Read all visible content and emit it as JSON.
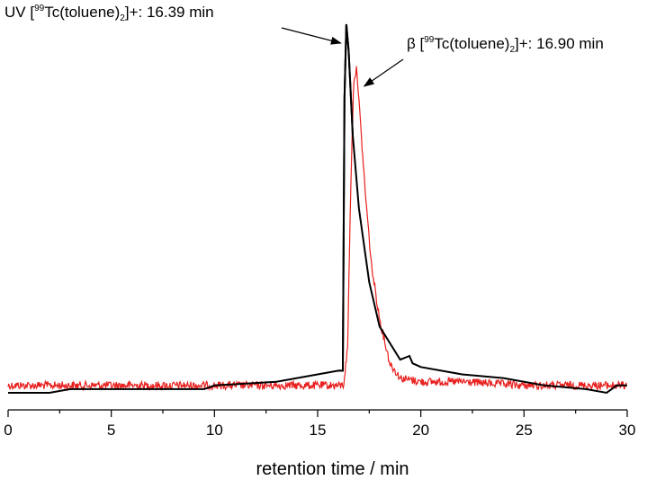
{
  "chart_data": {
    "type": "line",
    "xlabel": "retention time / min",
    "ylabel": "",
    "xlim": [
      0,
      30
    ],
    "x_ticks": [
      "0",
      "5",
      "10",
      "15",
      "20",
      "25",
      "30"
    ],
    "grid": false,
    "annotations": {
      "uv": {
        "prefix": "UV [",
        "sup": "99",
        "mid": "Tc(toluene)",
        "sub": "2",
        "suffix": "]+: 16.39 min",
        "x": 16.39
      },
      "beta": {
        "prefix": "β [",
        "sup": "99",
        "mid": "Tc(toluene)",
        "sub": "2",
        "suffix": "]+: 16.90 min",
        "x": 16.9
      }
    },
    "series": [
      {
        "color": "#000000",
        "x": [
          0,
          2,
          3,
          4,
          6,
          9.5,
          10,
          13,
          15,
          16.0,
          16.22,
          16.3,
          16.39,
          16.5,
          16.7,
          17.0,
          17.5,
          18.0,
          19.0,
          19.45,
          19.6,
          20,
          22,
          24,
          26,
          28,
          29,
          29.5,
          30
        ],
        "y": [
          0.0,
          0.0,
          0.01,
          0.01,
          0.01,
          0.01,
          0.02,
          0.03,
          0.05,
          0.06,
          0.06,
          0.8,
          1.0,
          0.93,
          0.7,
          0.5,
          0.3,
          0.18,
          0.09,
          0.1,
          0.08,
          0.07,
          0.05,
          0.04,
          0.02,
          0.01,
          0.0,
          0.02,
          0.02
        ]
      },
      {
        "color": "#e8201e",
        "x": [
          0,
          5,
          10,
          15,
          16.25,
          16.45,
          16.6,
          16.75,
          16.9,
          17.05,
          17.3,
          17.6,
          18.0,
          18.5,
          19.0,
          20,
          22,
          25,
          28,
          30
        ],
        "y": [
          0.02,
          0.02,
          0.02,
          0.02,
          0.02,
          0.12,
          0.55,
          0.85,
          0.88,
          0.75,
          0.55,
          0.35,
          0.2,
          0.08,
          0.04,
          0.03,
          0.03,
          0.02,
          0.02,
          0.02
        ]
      }
    ]
  }
}
